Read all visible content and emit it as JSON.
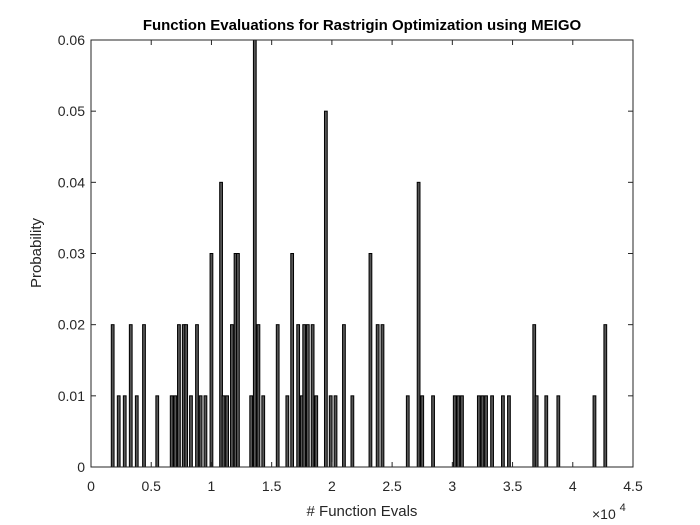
{
  "chart_data": {
    "type": "bar",
    "title": "Function Evaluations for Rastrigin Optimization using MEIGO",
    "xlabel": "# Function Evals",
    "ylabel": "Probability",
    "x_multiplier": {
      "base": "×10",
      "exponent": "4"
    },
    "xlim": [
      0,
      45000
    ],
    "ylim": [
      0,
      0.06
    ],
    "x_ticks": [
      0,
      5000,
      10000,
      15000,
      20000,
      25000,
      30000,
      35000,
      40000,
      45000
    ],
    "x_tick_labels": [
      "0",
      "0.5",
      "1",
      "1.5",
      "2",
      "2.5",
      "3",
      "3.5",
      "4",
      "4.5"
    ],
    "y_ticks": [
      0,
      0.01,
      0.02,
      0.03,
      0.04,
      0.05,
      0.06
    ],
    "y_tick_labels": [
      "0",
      "0.01",
      "0.02",
      "0.03",
      "0.04",
      "0.05",
      "0.06"
    ],
    "bar_color": "#555555",
    "grid": false,
    "bar_width": 230,
    "x": [
      1800,
      2300,
      2800,
      3300,
      3800,
      4400,
      5500,
      6700,
      7000,
      7300,
      7700,
      7900,
      8300,
      8800,
      9100,
      9500,
      10000,
      10800,
      11000,
      11300,
      11700,
      12000,
      12200,
      13300,
      13600,
      13900,
      14300,
      15500,
      16300,
      16700,
      17200,
      17500,
      17700,
      18000,
      18400,
      18700,
      19500,
      19900,
      20300,
      21000,
      21700,
      23200,
      23800,
      24200,
      26300,
      27200,
      27500,
      28400,
      30200,
      30500,
      30800,
      32200,
      32500,
      32800,
      33300,
      34200,
      34700,
      36800,
      37000,
      37800,
      38800,
      41800,
      42700
    ],
    "values": [
      0.02,
      0.01,
      0.01,
      0.02,
      0.01,
      0.02,
      0.01,
      0.01,
      0.01,
      0.02,
      0.02,
      0.02,
      0.01,
      0.02,
      0.01,
      0.01,
      0.03,
      0.04,
      0.01,
      0.01,
      0.02,
      0.03,
      0.03,
      0.01,
      0.06,
      0.02,
      0.01,
      0.02,
      0.01,
      0.03,
      0.02,
      0.01,
      0.02,
      0.02,
      0.02,
      0.01,
      0.05,
      0.01,
      0.01,
      0.02,
      0.01,
      0.03,
      0.02,
      0.02,
      0.01,
      0.04,
      0.01,
      0.01,
      0.01,
      0.01,
      0.01,
      0.01,
      0.01,
      0.01,
      0.01,
      0.01,
      0.01,
      0.02,
      0.01,
      0.01,
      0.01,
      0.01,
      0.02
    ]
  }
}
